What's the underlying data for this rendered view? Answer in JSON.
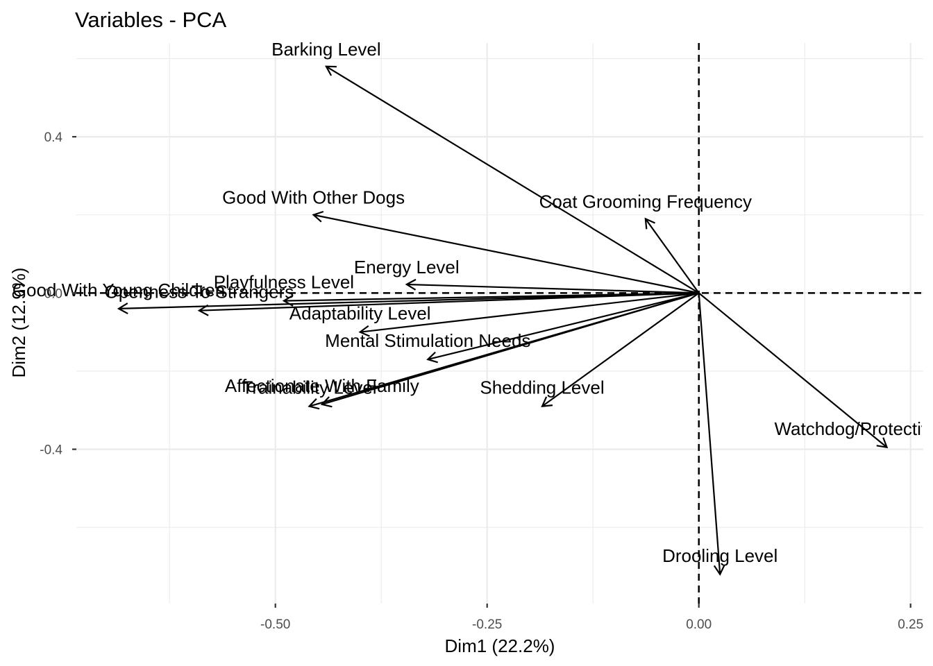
{
  "chart_data": {
    "type": "scatter",
    "subtype": "pca-variable-correlation-circle",
    "title": "Variables - PCA",
    "xlabel": "Dim1 (22.2%)",
    "ylabel": "Dim2 (12.9%)",
    "xlim": [
      -0.735,
      0.265
    ],
    "ylim": [
      -0.795,
      0.64
    ],
    "x_ticks": [
      {
        "value": -0.5,
        "label": "-0.50"
      },
      {
        "value": -0.25,
        "label": "-0.25"
      },
      {
        "value": 0.0,
        "label": "0.00"
      },
      {
        "value": 0.25,
        "label": "0.25"
      }
    ],
    "y_ticks": [
      {
        "value": 0.4,
        "label": "0.4"
      },
      {
        "value": 0.0,
        "label": "0.0"
      },
      {
        "value": -0.4,
        "label": "-0.4"
      }
    ],
    "grid": true,
    "reference_lines": {
      "x": 0,
      "y": 0
    },
    "variables": [
      {
        "name": "Barking Level",
        "x": -0.44,
        "y": 0.58
      },
      {
        "name": "Good With Other Dogs",
        "x": -0.455,
        "y": 0.2
      },
      {
        "name": "Coat Grooming Frequency",
        "x": -0.063,
        "y": 0.19
      },
      {
        "name": "Energy Level",
        "x": -0.345,
        "y": 0.022
      },
      {
        "name": "Playfulness Level",
        "x": -0.49,
        "y": -0.02
      },
      {
        "name": "Good With Young Children",
        "x": -0.685,
        "y": -0.04
      },
      {
        "name": "Openness To Strangers",
        "x": -0.59,
        "y": -0.045
      },
      {
        "name": "Adaptability Level",
        "x": -0.4,
        "y": -0.1
      },
      {
        "name": "Mental Stimulation Needs",
        "x": -0.32,
        "y": -0.17
      },
      {
        "name": "Affectionate With Family",
        "x": -0.445,
        "y": -0.285
      },
      {
        "name": "Trainability Level",
        "x": -0.46,
        "y": -0.29
      },
      {
        "name": "Shedding Level",
        "x": -0.185,
        "y": -0.29
      },
      {
        "name": "Watchdog/Protective Nature",
        "x": 0.222,
        "y": -0.395
      },
      {
        "name": "Drooling Level",
        "x": 0.025,
        "y": -0.72
      }
    ]
  }
}
